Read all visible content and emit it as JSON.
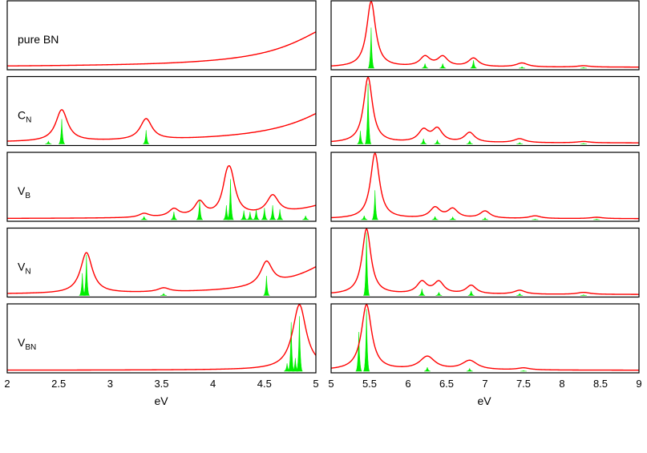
{
  "colors": {
    "broadened": "#ff0000",
    "stick": "#00ee00",
    "frame": "#000000"
  },
  "chart_data": {
    "type": "line",
    "title": "",
    "xlabel_left": "eV",
    "xlabel_right": "eV",
    "left_xlim": [
      2,
      5
    ],
    "right_xlim": [
      5,
      9
    ],
    "left_xticks": [
      "2",
      "2.5",
      "3",
      "3.5",
      "4",
      "4.5",
      "5"
    ],
    "right_xticks": [
      "5",
      "5.5",
      "6",
      "6.5",
      "7",
      "7.5",
      "8",
      "8.5",
      "9"
    ],
    "grid": false,
    "legend": "none",
    "panels": [
      {
        "label": "pure BN",
        "label_main": "pure BN",
        "label_sub": "",
        "left": {
          "peaks": [],
          "edge": {
            "x": 5.3,
            "width": 0.55,
            "amp": 0.7
          }
        },
        "right": {
          "peaks": [
            {
              "x": 5.52,
              "height": 1.0,
              "stick": 0.62,
              "width": 0.07
            },
            {
              "x": 6.22,
              "height": 0.15,
              "stick": 0.07,
              "width": 0.08
            },
            {
              "x": 6.45,
              "height": 0.15,
              "stick": 0.07,
              "width": 0.08
            },
            {
              "x": 6.85,
              "height": 0.13,
              "stick": 0.12,
              "width": 0.08
            },
            {
              "x": 7.48,
              "height": 0.06,
              "stick": 0.02,
              "width": 0.09
            },
            {
              "x": 8.28,
              "height": 0.02,
              "stick": 0.01,
              "width": 0.1
            }
          ]
        }
      },
      {
        "label": "CN",
        "label_main": "C",
        "label_sub": "N",
        "left": {
          "peaks": [
            {
              "x": 2.53,
              "height": 0.48,
              "stick": 0.38,
              "width": 0.07
            },
            {
              "x": 3.35,
              "height": 0.32,
              "stick": 0.21,
              "width": 0.07
            },
            {
              "x": 2.4,
              "height": 0.0,
              "stick": 0.04,
              "width": 0.07
            }
          ],
          "edge": {
            "x": 5.45,
            "width": 0.55,
            "amp": 0.75
          }
        },
        "right": {
          "peaks": [
            {
              "x": 5.48,
              "height": 1.0,
              "stick": 0.92,
              "width": 0.07
            },
            {
              "x": 5.38,
              "height": 0.0,
              "stick": 0.2,
              "width": 0.05
            },
            {
              "x": 6.2,
              "height": 0.18,
              "stick": 0.08,
              "width": 0.08
            },
            {
              "x": 6.38,
              "height": 0.2,
              "stick": 0.06,
              "width": 0.08
            },
            {
              "x": 6.8,
              "height": 0.15,
              "stick": 0.05,
              "width": 0.08
            },
            {
              "x": 7.45,
              "height": 0.06,
              "stick": 0.02,
              "width": 0.09
            },
            {
              "x": 8.28,
              "height": 0.02,
              "stick": 0.01,
              "width": 0.1
            }
          ]
        }
      },
      {
        "label": "VB",
        "label_main": "V",
        "label_sub": "B",
        "left": {
          "peaks": [
            {
              "x": 3.33,
              "height": 0.06,
              "stick": 0.05,
              "width": 0.06
            },
            {
              "x": 3.62,
              "height": 0.12,
              "stick": 0.12,
              "width": 0.06
            },
            {
              "x": 3.87,
              "height": 0.22,
              "stick": 0.3,
              "width": 0.06
            },
            {
              "x": 4.13,
              "height": 0.3,
              "stick": 0.22,
              "width": 0.05
            },
            {
              "x": 4.17,
              "height": 0.55,
              "stick": 0.62,
              "width": 0.06
            },
            {
              "x": 4.3,
              "height": 0.0,
              "stick": 0.14,
              "width": 0.04
            },
            {
              "x": 4.36,
              "height": 0.0,
              "stick": 0.12,
              "width": 0.04
            },
            {
              "x": 4.42,
              "height": 0.0,
              "stick": 0.16,
              "width": 0.04
            },
            {
              "x": 4.5,
              "height": 0.0,
              "stick": 0.18,
              "width": 0.04
            },
            {
              "x": 4.58,
              "height": 0.28,
              "stick": 0.22,
              "width": 0.07
            },
            {
              "x": 4.65,
              "height": 0.0,
              "stick": 0.16,
              "width": 0.04
            },
            {
              "x": 4.9,
              "height": 0.0,
              "stick": 0.06,
              "width": 0.04
            }
          ],
          "edge": {
            "x": 5.3,
            "width": 0.4,
            "amp": 0.3
          }
        },
        "right": {
          "peaks": [
            {
              "x": 5.57,
              "height": 1.0,
              "stick": 0.45,
              "width": 0.07
            },
            {
              "x": 5.43,
              "height": 0.0,
              "stick": 0.06,
              "width": 0.05
            },
            {
              "x": 6.35,
              "height": 0.16,
              "stick": 0.05,
              "width": 0.08
            },
            {
              "x": 6.58,
              "height": 0.14,
              "stick": 0.04,
              "width": 0.08
            },
            {
              "x": 7.0,
              "height": 0.11,
              "stick": 0.03,
              "width": 0.08
            },
            {
              "x": 7.65,
              "height": 0.04,
              "stick": 0.01,
              "width": 0.09
            },
            {
              "x": 8.45,
              "height": 0.02,
              "stick": 0.01,
              "width": 0.1
            }
          ]
        }
      },
      {
        "label": "VN",
        "label_main": "V",
        "label_sub": "N",
        "left": {
          "peaks": [
            {
              "x": 2.77,
              "height": 0.62,
              "stick": 0.62,
              "width": 0.07
            },
            {
              "x": 2.73,
              "height": 0.0,
              "stick": 0.34,
              "width": 0.04
            },
            {
              "x": 3.52,
              "height": 0.06,
              "stick": 0.03,
              "width": 0.07
            },
            {
              "x": 4.52,
              "height": 0.36,
              "stick": 0.3,
              "width": 0.07
            }
          ],
          "edge": {
            "x": 5.3,
            "width": 0.45,
            "amp": 0.6
          }
        },
        "right": {
          "peaks": [
            {
              "x": 5.46,
              "height": 1.0,
              "stick": 0.96,
              "width": 0.07
            },
            {
              "x": 6.18,
              "height": 0.18,
              "stick": 0.1,
              "width": 0.08
            },
            {
              "x": 6.4,
              "height": 0.18,
              "stick": 0.05,
              "width": 0.08
            },
            {
              "x": 6.82,
              "height": 0.13,
              "stick": 0.07,
              "width": 0.08
            },
            {
              "x": 7.45,
              "height": 0.06,
              "stick": 0.03,
              "width": 0.09
            },
            {
              "x": 8.28,
              "height": 0.03,
              "stick": 0.01,
              "width": 0.1
            }
          ]
        }
      },
      {
        "label": "VBN",
        "label_main": "V",
        "label_sub": "BN",
        "left": {
          "peaks": [
            {
              "x": 4.84,
              "height": 0.98,
              "stick": 0.84,
              "width": 0.08
            },
            {
              "x": 4.76,
              "height": 0.0,
              "stick": 0.75,
              "width": 0.04
            },
            {
              "x": 4.72,
              "height": 0.0,
              "stick": 0.12,
              "width": 0.04
            },
            {
              "x": 4.8,
              "height": 0.0,
              "stick": 0.2,
              "width": 0.04
            }
          ],
          "edge": {
            "x": 5.6,
            "width": 0.4,
            "amp": 0.1
          }
        },
        "right": {
          "peaks": [
            {
              "x": 5.46,
              "height": 1.0,
              "stick": 0.95,
              "width": 0.08
            },
            {
              "x": 5.36,
              "height": 0.0,
              "stick": 0.6,
              "width": 0.05
            },
            {
              "x": 6.25,
              "height": 0.2,
              "stick": 0.06,
              "width": 0.12
            },
            {
              "x": 6.8,
              "height": 0.14,
              "stick": 0.04,
              "width": 0.12
            },
            {
              "x": 7.5,
              "height": 0.03,
              "stick": 0.01,
              "width": 0.1
            }
          ]
        }
      }
    ]
  }
}
